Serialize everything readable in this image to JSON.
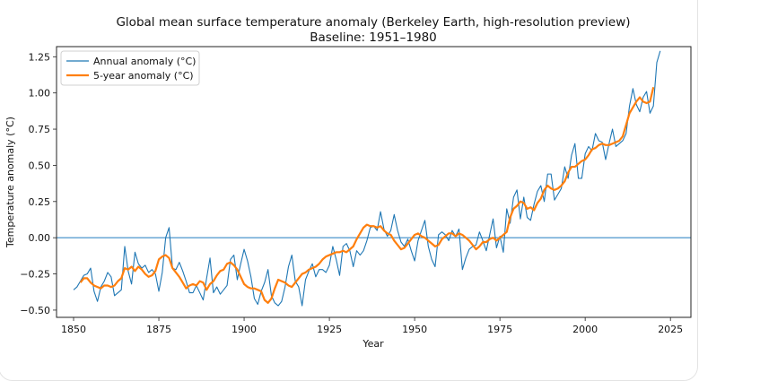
{
  "chart_data": {
    "type": "line",
    "title": "Global mean surface temperature anomaly (Berkeley Earth, high-resolution preview)",
    "subtitle": "Baseline: 1951–1980",
    "xlabel": "Year",
    "ylabel": "Temperature anomaly (°C)",
    "xlim": [
      1845,
      2031
    ],
    "ylim": [
      -0.55,
      1.32
    ],
    "xticks": [
      1850,
      1875,
      1900,
      1925,
      1950,
      1975,
      2000,
      2025
    ],
    "yticks": [
      -0.5,
      -0.25,
      0.0,
      0.25,
      0.5,
      0.75,
      1.0,
      1.25
    ],
    "ytick_labels": [
      "−0.50",
      "−0.25",
      "0.00",
      "0.25",
      "0.50",
      "0.75",
      "1.00",
      "1.25"
    ],
    "xtick_labels": [
      "1850",
      "1875",
      "1900",
      "1925",
      "1950",
      "1975",
      "2000",
      "2025"
    ],
    "grid": false,
    "legend_position": "top-left",
    "reference_line": {
      "y": 0.0,
      "color": "#5b9fd0"
    },
    "series": [
      {
        "name": "Annual anomaly (°C)",
        "color": "#1f77b4",
        "x_start": 1850,
        "values": [
          -0.36,
          -0.34,
          -0.3,
          -0.26,
          -0.25,
          -0.21,
          -0.37,
          -0.44,
          -0.34,
          -0.3,
          -0.24,
          -0.27,
          -0.4,
          -0.38,
          -0.36,
          -0.06,
          -0.23,
          -0.32,
          -0.1,
          -0.18,
          -0.21,
          -0.19,
          -0.24,
          -0.22,
          -0.25,
          -0.37,
          -0.24,
          0.0,
          0.07,
          -0.21,
          -0.22,
          -0.17,
          -0.23,
          -0.3,
          -0.38,
          -0.38,
          -0.33,
          -0.38,
          -0.43,
          -0.28,
          -0.14,
          -0.38,
          -0.34,
          -0.39,
          -0.36,
          -0.33,
          -0.15,
          -0.12,
          -0.29,
          -0.18,
          -0.08,
          -0.16,
          -0.27,
          -0.42,
          -0.46,
          -0.37,
          -0.31,
          -0.22,
          -0.4,
          -0.45,
          -0.47,
          -0.44,
          -0.34,
          -0.2,
          -0.12,
          -0.3,
          -0.34,
          -0.47,
          -0.29,
          -0.23,
          -0.18,
          -0.27,
          -0.22,
          -0.22,
          -0.24,
          -0.19,
          -0.06,
          -0.15,
          -0.26,
          -0.06,
          -0.04,
          -0.09,
          -0.2,
          -0.09,
          -0.12,
          -0.09,
          -0.02,
          0.07,
          0.08,
          0.05,
          0.18,
          0.06,
          0.01,
          0.05,
          0.16,
          0.05,
          -0.03,
          -0.06,
          -0.01,
          -0.09,
          -0.16,
          -0.02,
          0.05,
          0.12,
          -0.06,
          -0.15,
          -0.2,
          0.02,
          0.04,
          0.02,
          -0.02,
          0.05,
          0.01,
          0.06,
          -0.22,
          -0.14,
          -0.08,
          -0.06,
          -0.05,
          0.04,
          -0.02,
          -0.09,
          0.02,
          0.13,
          -0.07,
          0.01,
          -0.1,
          0.2,
          0.1,
          0.28,
          0.33,
          0.13,
          0.28,
          0.14,
          0.12,
          0.23,
          0.32,
          0.36,
          0.25,
          0.44,
          0.44,
          0.26,
          0.3,
          0.34,
          0.49,
          0.41,
          0.57,
          0.65,
          0.41,
          0.41,
          0.58,
          0.63,
          0.6,
          0.72,
          0.67,
          0.66,
          0.54,
          0.65,
          0.75,
          0.63,
          0.65,
          0.67,
          0.72,
          0.91,
          1.03,
          0.92,
          0.87,
          0.97,
          1.01,
          0.86,
          0.91,
          1.21,
          1.29
        ]
      },
      {
        "name": "5-year anomaly (°C)",
        "color": "#ff7f0e",
        "x_start": 1852,
        "values": [
          -0.31,
          -0.28,
          -0.28,
          -0.31,
          -0.33,
          -0.34,
          -0.35,
          -0.33,
          -0.33,
          -0.34,
          -0.33,
          -0.3,
          -0.28,
          -0.21,
          -0.22,
          -0.2,
          -0.23,
          -0.2,
          -0.22,
          -0.25,
          -0.27,
          -0.26,
          -0.23,
          -0.15,
          -0.13,
          -0.12,
          -0.14,
          -0.21,
          -0.24,
          -0.27,
          -0.31,
          -0.35,
          -0.33,
          -0.32,
          -0.33,
          -0.3,
          -0.31,
          -0.36,
          -0.32,
          -0.3,
          -0.26,
          -0.23,
          -0.22,
          -0.18,
          -0.17,
          -0.19,
          -0.22,
          -0.27,
          -0.32,
          -0.34,
          -0.35,
          -0.35,
          -0.36,
          -0.37,
          -0.43,
          -0.45,
          -0.42,
          -0.35,
          -0.29,
          -0.3,
          -0.31,
          -0.33,
          -0.34,
          -0.31,
          -0.28,
          -0.25,
          -0.24,
          -0.22,
          -0.21,
          -0.2,
          -0.18,
          -0.15,
          -0.13,
          -0.12,
          -0.11,
          -0.1,
          -0.1,
          -0.09,
          -0.1,
          -0.08,
          -0.06,
          -0.01,
          0.03,
          0.07,
          0.09,
          0.08,
          0.08,
          0.07,
          0.08,
          0.05,
          0.03,
          0.02,
          -0.02,
          -0.05,
          -0.08,
          -0.07,
          -0.04,
          -0.01,
          0.02,
          0.03,
          0.01,
          0.0,
          -0.02,
          -0.04,
          -0.06,
          -0.05,
          -0.01,
          0.01,
          0.03,
          0.03,
          0.01,
          0.03,
          0.02,
          0.0,
          -0.02,
          -0.05,
          -0.08,
          -0.06,
          -0.03,
          -0.03,
          -0.01,
          0.0,
          -0.02,
          0.0,
          0.02,
          0.04,
          0.14,
          0.2,
          0.22,
          0.25,
          0.24,
          0.2,
          0.21,
          0.19,
          0.24,
          0.27,
          0.33,
          0.36,
          0.34,
          0.33,
          0.34,
          0.36,
          0.39,
          0.45,
          0.49,
          0.49,
          0.51,
          0.53,
          0.54,
          0.57,
          0.61,
          0.62,
          0.64,
          0.65,
          0.64,
          0.64,
          0.65,
          0.66,
          0.67,
          0.7,
          0.78,
          0.86,
          0.9,
          0.94,
          0.97,
          0.94,
          0.93,
          0.94,
          1.04
        ]
      }
    ]
  },
  "legend": {
    "items": [
      {
        "label": "Annual anomaly (°C)",
        "color": "#1f77b4"
      },
      {
        "label": "5-year anomaly (°C)",
        "color": "#ff7f0e"
      }
    ]
  }
}
